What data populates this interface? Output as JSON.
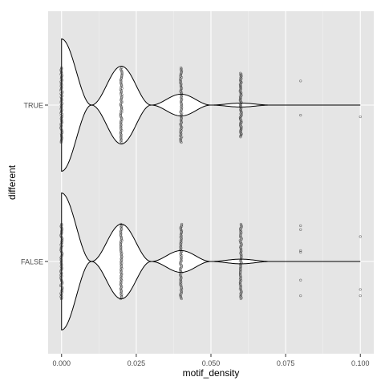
{
  "chart_data": {
    "type": "violin",
    "orientation": "horizontal",
    "xlabel": "motif_density",
    "ylabel": "different",
    "xlim": [
      -0.0045,
      0.1045
    ],
    "x_ticks": [
      0.0,
      0.025,
      0.05,
      0.075,
      0.1
    ],
    "x_tick_labels": [
      "0.000",
      "0.025",
      "0.050",
      "0.075",
      "0.100"
    ],
    "categories": [
      "TRUE",
      "FALSE"
    ],
    "grid": true,
    "panel_background": "#e5e5e5",
    "grid_color": "#ffffff",
    "series": [
      {
        "category": "TRUE",
        "density_profile": [
          {
            "x": 0.0,
            "half_width": 0.85
          },
          {
            "x": 0.01,
            "half_width": 0.0
          },
          {
            "x": 0.02,
            "half_width": 0.5
          },
          {
            "x": 0.03,
            "half_width": 0.0
          },
          {
            "x": 0.04,
            "half_width": 0.14
          },
          {
            "x": 0.05,
            "half_width": 0.0
          },
          {
            "x": 0.06,
            "half_width": 0.025
          },
          {
            "x": 0.07,
            "half_width": 0.0
          },
          {
            "x": 0.1,
            "half_width": 0.0
          }
        ],
        "points": [
          {
            "x": 0.0,
            "spread": 0.48
          },
          {
            "x": 0.02,
            "spread": 0.48
          },
          {
            "x": 0.04,
            "spread": 0.48
          },
          {
            "x": 0.06,
            "spread": 0.41
          },
          {
            "x": 0.08,
            "values_offset": [
              0.31,
              -0.13
            ]
          },
          {
            "x": 0.1,
            "values_offset": [
              -0.15
            ]
          }
        ]
      },
      {
        "category": "FALSE",
        "density_profile": [
          {
            "x": 0.0,
            "half_width": 0.88
          },
          {
            "x": 0.01,
            "half_width": 0.0
          },
          {
            "x": 0.02,
            "half_width": 0.48
          },
          {
            "x": 0.03,
            "half_width": 0.0
          },
          {
            "x": 0.04,
            "half_width": 0.14
          },
          {
            "x": 0.05,
            "half_width": 0.0
          },
          {
            "x": 0.06,
            "half_width": 0.03
          },
          {
            "x": 0.07,
            "half_width": 0.0
          },
          {
            "x": 0.1,
            "half_width": 0.0
          }
        ],
        "points": [
          {
            "x": 0.0,
            "spread": 0.48
          },
          {
            "x": 0.02,
            "spread": 0.48
          },
          {
            "x": 0.04,
            "spread": 0.48
          },
          {
            "x": 0.06,
            "spread": 0.48
          },
          {
            "x": 0.08,
            "values_offset": [
              0.46,
              0.41,
              0.14,
              0.12,
              -0.24,
              -0.44
            ]
          },
          {
            "x": 0.1,
            "values_offset": [
              0.32,
              -0.36,
              -0.44
            ]
          }
        ]
      }
    ]
  }
}
